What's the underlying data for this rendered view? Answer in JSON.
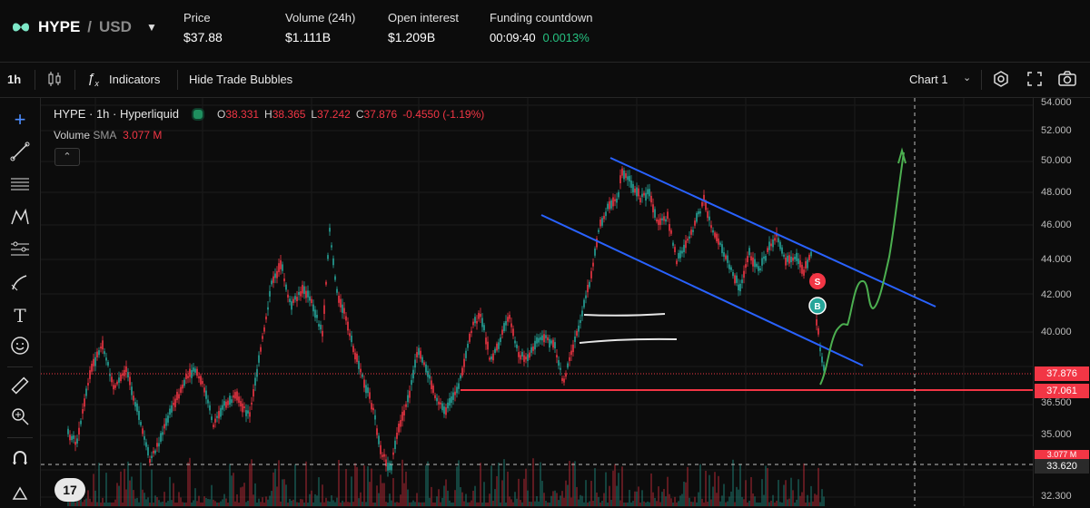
{
  "header": {
    "pair_base": "HYPE",
    "pair_sep": "/",
    "pair_quote": "USD",
    "stats": [
      {
        "label": "Price",
        "value": "$37.88"
      },
      {
        "label": "Volume (24h)",
        "value": "$1.111B"
      },
      {
        "label": "Open interest",
        "value": "$1.209B"
      },
      {
        "label": "Funding countdown",
        "value": "00:09:40",
        "extra": "0.0013%"
      }
    ]
  },
  "toolbar": {
    "interval": "1h",
    "indicators_label": "Indicators",
    "hide_bubbles_label": "Hide Trade Bubbles",
    "chart_name": "Chart 1"
  },
  "legend": {
    "title": "HYPE · 1h · Hyperliquid",
    "o_key": "O",
    "o_val": "38.331",
    "h_key": "H",
    "h_val": "38.365",
    "l_key": "L",
    "l_val": "37.242",
    "c_key": "C",
    "c_val": "37.876",
    "change": "-0.4550 (-1.19%)",
    "volume_label": "Volume",
    "sma_label": "SMA",
    "volume_value": "3.077 M"
  },
  "price_axis": {
    "ticks": [
      "54.000",
      "52.000",
      "50.000",
      "48.000",
      "46.000",
      "44.000",
      "42.000",
      "40.000",
      "36.500",
      "35.000",
      "32.300"
    ],
    "tags": [
      {
        "value": "37.876",
        "color": "#f23645"
      },
      {
        "value": "37.061",
        "color": "#f23645"
      },
      {
        "value": "3.077 M",
        "color": "#f23645"
      },
      {
        "value": "33.620",
        "color": "#2a2a2a"
      }
    ]
  },
  "markers": {
    "sell": "S",
    "buy": "B"
  },
  "logo": "17",
  "colors": {
    "up": "#26a69a",
    "down": "#f23645",
    "channel": "#2962ff",
    "projection": "#4caf50",
    "support": "#f23645"
  }
}
